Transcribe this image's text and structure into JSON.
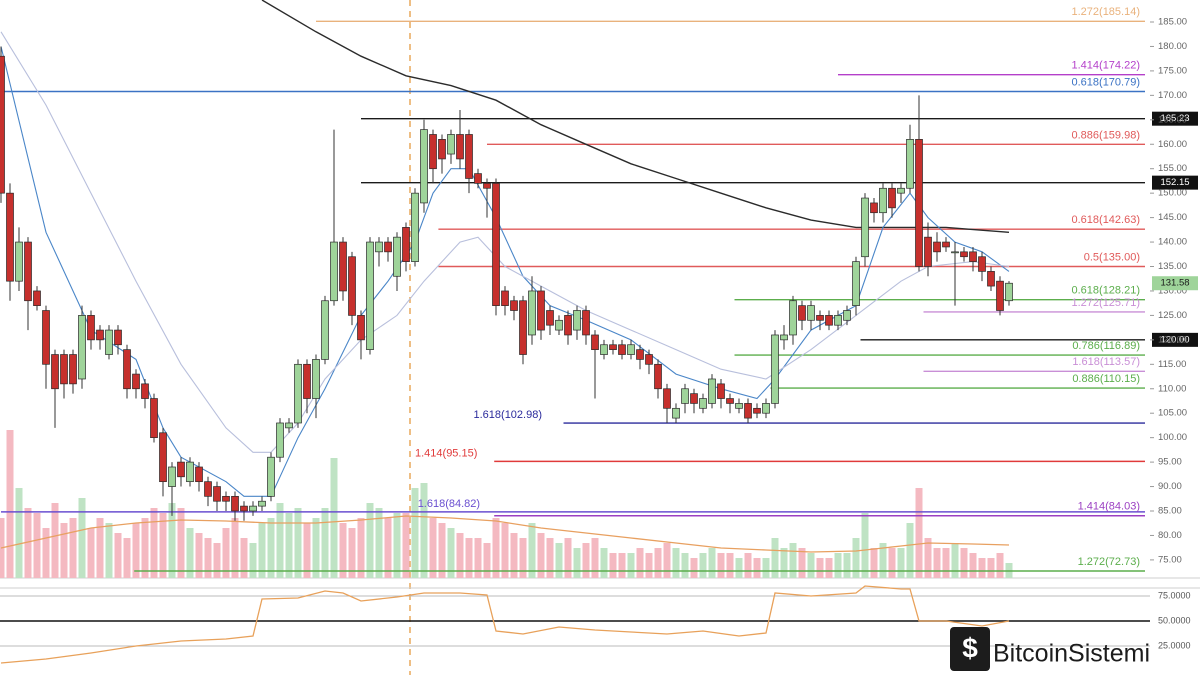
{
  "chart_data": {
    "type": "candlestick",
    "ohlc": {
      "open": [
        178,
        150,
        132,
        140,
        130,
        126,
        117,
        117,
        117,
        112,
        125,
        122,
        117,
        122,
        118,
        113,
        111,
        108,
        101,
        90,
        95,
        91,
        94,
        91,
        90,
        88,
        88,
        86,
        85,
        86,
        88,
        96,
        102,
        103,
        115,
        108,
        116,
        128,
        140,
        137,
        125,
        118,
        138,
        140,
        133,
        143,
        136,
        148,
        162,
        161,
        158,
        162,
        162,
        154,
        152,
        152,
        130,
        128,
        128,
        121,
        130,
        126,
        122,
        125,
        122,
        126,
        121,
        117,
        119,
        119,
        117,
        118,
        117,
        115,
        110,
        104,
        107,
        109,
        106,
        107,
        111,
        108,
        106,
        107,
        106,
        105,
        107,
        120,
        121,
        127,
        124,
        125,
        125,
        123,
        124,
        127,
        137,
        148,
        146,
        151,
        150,
        151,
        161,
        141,
        140,
        140,
        138,
        138,
        138,
        137,
        134,
        132,
        128
      ],
      "high": [
        180,
        152,
        143,
        141,
        131,
        127,
        118,
        118,
        118,
        127,
        126,
        123,
        123,
        123,
        119,
        114,
        112,
        109,
        102,
        95,
        96,
        96,
        95,
        92,
        91,
        89,
        89,
        87,
        87,
        88,
        97,
        104,
        104,
        116,
        116,
        117,
        129,
        163,
        141,
        138,
        126,
        141,
        141,
        141,
        142,
        144,
        151,
        165,
        163,
        162,
        163,
        167,
        163,
        155,
        153,
        153,
        131,
        129,
        129,
        133,
        131,
        127,
        125,
        126,
        127,
        127,
        122,
        120,
        120,
        120,
        120,
        119,
        118,
        116,
        111,
        107,
        111,
        110,
        109,
        113,
        112,
        109,
        108,
        108,
        107,
        108,
        122,
        123,
        129,
        128,
        128,
        126,
        126,
        126,
        127,
        137,
        150,
        149,
        152,
        152,
        152,
        164,
        170,
        144,
        142,
        141,
        140,
        139,
        139,
        138,
        135,
        133,
        132
      ],
      "low": [
        148,
        128,
        130,
        122,
        126,
        110,
        102,
        108,
        109,
        110,
        118,
        118,
        116,
        117,
        108,
        108,
        106,
        99,
        88,
        84,
        90,
        90,
        89,
        86,
        85,
        85,
        83,
        83,
        84,
        85,
        87,
        95,
        101,
        102,
        105,
        104,
        115,
        127,
        128,
        123,
        116,
        117,
        135,
        136,
        130,
        134,
        135,
        146,
        152,
        154,
        156,
        155,
        150,
        151,
        145,
        125,
        125,
        124,
        115,
        119,
        120,
        121,
        121,
        119,
        120,
        119,
        108,
        116,
        117,
        116,
        116,
        114,
        113,
        108,
        103,
        103,
        105,
        105,
        105,
        106,
        106,
        105,
        105,
        103,
        104,
        104,
        106,
        118,
        119,
        122,
        122,
        122,
        122,
        122,
        123,
        125,
        135,
        144,
        144,
        145,
        148,
        150,
        134,
        133,
        136,
        138,
        127,
        136,
        134,
        132,
        130,
        125,
        127
      ],
      "close": [
        150,
        132,
        140,
        128,
        127,
        115,
        110,
        111,
        111,
        125,
        120,
        120,
        122,
        119,
        110,
        110,
        108,
        100,
        91,
        94,
        92,
        95,
        91,
        88,
        87,
        87,
        85,
        85,
        86,
        87,
        96,
        103,
        103,
        115,
        108,
        116,
        128,
        140,
        130,
        125,
        120,
        140,
        140,
        138,
        141,
        136,
        150,
        163,
        155,
        157,
        162,
        157,
        153,
        152,
        151,
        127,
        127,
        126,
        117,
        130,
        122,
        123,
        124,
        121,
        126,
        121,
        118,
        119,
        118,
        117,
        119,
        116,
        115,
        110,
        106,
        106,
        110,
        107,
        108,
        112,
        108,
        107,
        107,
        104,
        105,
        107,
        121,
        121,
        128,
        124,
        127,
        124,
        123,
        125,
        126,
        136,
        149,
        146,
        151,
        147,
        151,
        161,
        135,
        135,
        138,
        139,
        138,
        137,
        136,
        134,
        131,
        126,
        131.58
      ]
    },
    "up_color": "#9fd49a",
    "down_color": "#c6302d",
    "ylim": [
      71.3,
      189.5
    ],
    "yticks": [
      {
        "value": 75,
        "label": "75.00"
      },
      {
        "value": 80,
        "label": "80.00"
      },
      {
        "value": 85,
        "label": "85.00"
      },
      {
        "value": 90,
        "label": "90.00"
      },
      {
        "value": 95,
        "label": "95.00"
      },
      {
        "value": 100,
        "label": "100.00"
      },
      {
        "value": 105,
        "label": "105.00"
      },
      {
        "value": 110,
        "label": "110.00"
      },
      {
        "value": 115,
        "label": "115.00"
      },
      {
        "value": 120,
        "label": "120.00"
      },
      {
        "value": 125,
        "label": "125.00"
      },
      {
        "value": 130,
        "label": "130.00"
      },
      {
        "value": 135,
        "label": "135.00"
      },
      {
        "value": 140,
        "label": "140.00"
      },
      {
        "value": 145,
        "label": "145.00"
      },
      {
        "value": 150,
        "label": "150.00"
      },
      {
        "value": 155,
        "label": "155.00"
      },
      {
        "value": 160,
        "label": "160.00"
      },
      {
        "value": 165,
        "label": "165.00"
      },
      {
        "value": 170,
        "label": "170.00"
      },
      {
        "value": 175,
        "label": "175.00"
      },
      {
        "value": 180,
        "label": "180.00"
      },
      {
        "value": 185,
        "label": "185.00"
      }
    ],
    "moving_averages": [
      {
        "color": "#2b2b2b",
        "x": [
          29,
          35,
          40,
          45,
          50,
          55,
          60,
          65,
          70,
          75,
          80,
          85,
          90,
          95,
          100,
          105,
          112
        ],
        "values": [
          189.5,
          183,
          178,
          174,
          172,
          169,
          164,
          160,
          156,
          153,
          150,
          147,
          144.5,
          143,
          143,
          143,
          142
        ]
      },
      {
        "color": "#4a86c8",
        "x": [
          0,
          5,
          10,
          15,
          18,
          20,
          25,
          27,
          30,
          33,
          36,
          40,
          43,
          46,
          48,
          50,
          52,
          55,
          58,
          61,
          65,
          70,
          75,
          80,
          84,
          86,
          90,
          95,
          98,
          101,
          103,
          106,
          109,
          112
        ],
        "values": [
          180,
          142,
          122,
          116,
          102,
          96,
          91,
          88,
          88,
          100,
          110,
          125,
          132,
          140,
          150,
          155,
          155,
          145,
          133,
          127,
          124,
          120,
          113,
          110,
          108,
          112,
          122,
          127,
          143,
          150,
          145,
          140,
          138,
          134
        ]
      },
      {
        "color": "#b8bfdc",
        "x": [
          0,
          5,
          10,
          15,
          20,
          25,
          28,
          30,
          33,
          36,
          40,
          44,
          47,
          51,
          53,
          56,
          60,
          65,
          70,
          75,
          80,
          85,
          90,
          95,
          100,
          103,
          108,
          112
        ],
        "values": [
          183,
          168,
          150,
          132,
          115,
          102,
          97,
          97,
          103,
          112,
          120,
          125,
          132,
          140,
          141,
          135,
          131,
          126,
          122,
          118,
          114,
          112,
          118,
          125,
          132,
          135,
          136,
          135
        ]
      }
    ],
    "levels": [
      {
        "value": 185.14,
        "label": "1.272(185.14)",
        "color": "#e9b27c",
        "start": 35
      },
      {
        "value": 174.22,
        "label": "1.414(174.22)",
        "color": "#b43fca",
        "start": 93
      },
      {
        "value": 170.79,
        "label": "0.618(170.79)",
        "color": "#3b72c4",
        "start": 0
      },
      {
        "value": 165.23,
        "color": "#1a1a1a",
        "start": 40,
        "boxed": true
      },
      {
        "value": 159.98,
        "label": "0.886(159.98)",
        "color": "#e05a5a",
        "start": 54
      },
      {
        "value": 152.15,
        "color": "#1a1a1a",
        "start": 40,
        "boxed": true
      },
      {
        "value": 142.63,
        "label": "0.618(142.63)",
        "color": "#e05a5a",
        "start": 48.6
      },
      {
        "value": 135,
        "label": "0.5(135.00)",
        "color": "#e05a5a",
        "start": 48.6
      },
      {
        "value": 128.21,
        "label": "0.618(128.21)",
        "color": "#5cae4c",
        "start": 81.5
      },
      {
        "value": 125.71,
        "label": "1.272(125.71)",
        "color": "#c98fd6",
        "start": 102.5
      },
      {
        "value": 120,
        "label": "120.00",
        "color": "#1a1a1a",
        "start": 95.5,
        "boxed": true
      },
      {
        "value": 116.89,
        "label": "0.786(116.89)",
        "color": "#5cae4c",
        "start": 81.5
      },
      {
        "value": 113.57,
        "label": "1.618(113.57)",
        "color": "#c98fd6",
        "start": 102.5
      },
      {
        "value": 110.15,
        "label": "0.886(110.15)",
        "color": "#5cae4c",
        "start": 85.5
      },
      {
        "value": 102.98,
        "label": "1.618(102.98)",
        "color": "#2b2b9c",
        "start": 62.5,
        "label_at": 52.5
      },
      {
        "value": 95.15,
        "label": "1.414(95.15)",
        "color": "#e03a3a",
        "start": 54.8,
        "label_at": 46
      },
      {
        "value": 84.82,
        "label": "1.618(84.82)",
        "color": "#6a4fd0",
        "start": 0,
        "label_at": 46.3
      },
      {
        "value": 84.03,
        "label": "1.414(84.03)",
        "color": "#9b3fc2",
        "start": 54.8
      },
      {
        "value": 72.73,
        "label": "1.272(72.73)",
        "color": "#5cae4c",
        "start": 14.8
      }
    ],
    "volume": {
      "values": [
        60,
        148,
        90,
        70,
        65,
        50,
        75,
        55,
        60,
        80,
        50,
        60,
        55,
        45,
        40,
        55,
        60,
        70,
        65,
        75,
        70,
        50,
        45,
        40,
        35,
        50,
        60,
        40,
        35,
        55,
        60,
        75,
        65,
        70,
        55,
        60,
        70,
        120,
        55,
        50,
        60,
        75,
        70,
        60,
        65,
        65,
        90,
        95,
        60,
        55,
        50,
        45,
        40,
        40,
        35,
        60,
        55,
        45,
        40,
        55,
        45,
        40,
        35,
        40,
        30,
        35,
        40,
        30,
        25,
        25,
        25,
        30,
        25,
        30,
        35,
        30,
        25,
        20,
        25,
        30,
        25,
        25,
        20,
        25,
        20,
        20,
        40,
        30,
        35,
        30,
        25,
        20,
        20,
        25,
        25,
        40,
        65,
        30,
        35,
        30,
        30,
        55,
        90,
        40,
        30,
        30,
        35,
        30,
        25,
        20,
        20,
        25,
        15
      ],
      "up_color": "#bfe3c4",
      "down_color": "#f4b9c1",
      "ylim": [
        0,
        150
      ],
      "average": {
        "color": "#e8a060",
        "x": [
          0,
          5,
          10,
          15,
          20,
          25,
          30,
          35,
          40,
          45,
          50,
          55,
          60,
          65,
          70,
          75,
          80,
          85,
          90,
          95,
          100,
          103,
          108,
          112
        ],
        "values": [
          30,
          40,
          50,
          55,
          58,
          57,
          55,
          55,
          58,
          62,
          60,
          57,
          50,
          45,
          40,
          35,
          30,
          28,
          26,
          27,
          32,
          35,
          34,
          33
        ]
      }
    },
    "rsi": {
      "ylim": [
        0,
        83
      ],
      "yticks": [
        {
          "value": 75,
          "label": "75.0000"
        },
        {
          "value": 50,
          "label": "50.0000"
        },
        {
          "value": 25,
          "label": "25.0000"
        }
      ],
      "color": "#e8a15a",
      "x": [
        0,
        5,
        10,
        15,
        18,
        20,
        25,
        28,
        29,
        33,
        36,
        38,
        40,
        44,
        47,
        51,
        54,
        55,
        58,
        62,
        66,
        70,
        74,
        78,
        82,
        85,
        86,
        90,
        95,
        96,
        100,
        101,
        102,
        105,
        109,
        112
      ],
      "values": [
        8,
        12,
        18,
        25,
        28,
        30,
        32,
        35,
        72,
        73,
        80,
        78,
        70,
        74,
        78,
        78,
        76,
        40,
        37,
        44,
        41,
        39,
        37,
        40,
        35,
        38,
        78,
        75,
        78,
        85,
        82,
        82,
        50,
        50,
        45,
        50
      ]
    },
    "watermark": "BitcoinSistemi"
  }
}
